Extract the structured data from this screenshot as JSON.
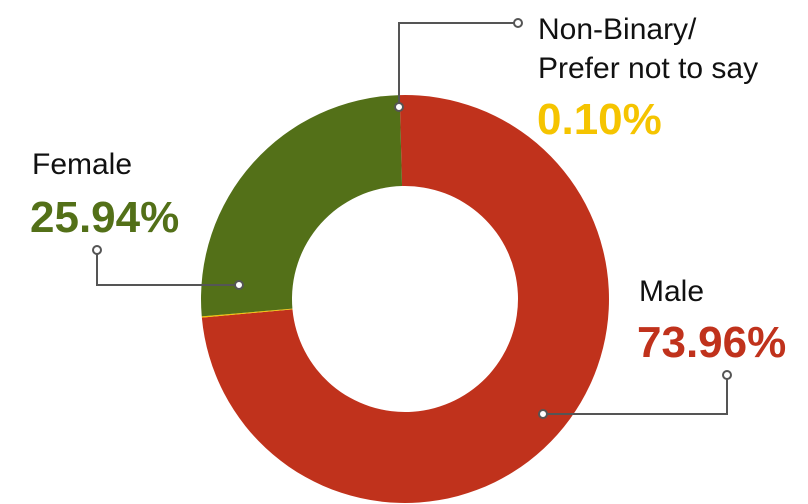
{
  "chart_data": {
    "type": "pie",
    "variant": "donut",
    "categories": [
      "Male",
      "Non-Binary/ Prefer not to say",
      "Female"
    ],
    "series": [
      {
        "values": [
          73.96,
          0.1,
          25.94
        ]
      }
    ],
    "labels": {
      "male": {
        "name": "Male",
        "value": "73.96%"
      },
      "nonbinary": {
        "name_line1": "Non-Binary/",
        "name_line2": "Prefer not to say",
        "value": "0.10%"
      },
      "female": {
        "name": "Female",
        "value": "25.94%"
      }
    },
    "colors": {
      "male": "#c0321c",
      "nonbinary": "#f5c400",
      "female": "#537018",
      "leader": "#555555"
    },
    "legend": "none",
    "grid": false
  }
}
